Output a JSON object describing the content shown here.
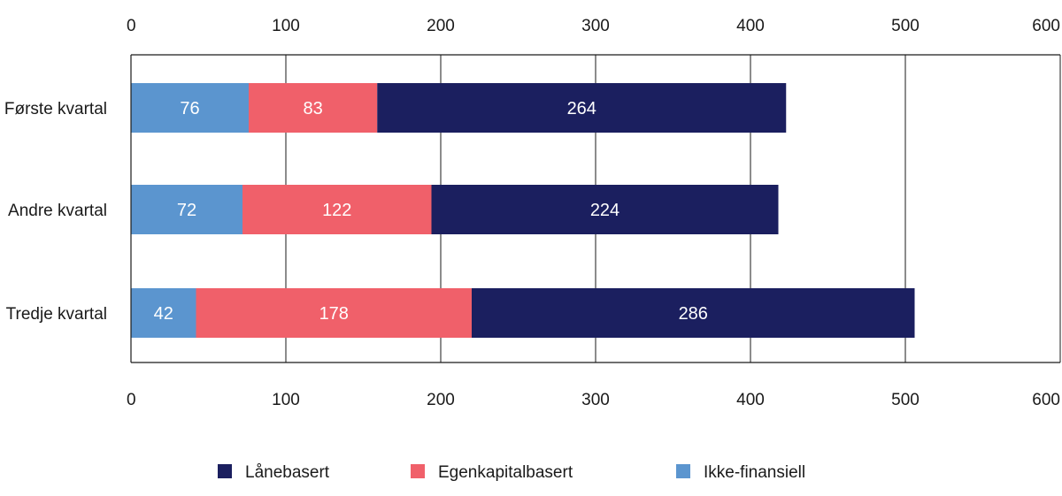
{
  "chart_data": {
    "type": "bar",
    "orientation": "horizontal",
    "stacked": true,
    "categories": [
      "Første kvartal",
      "Andre kvartal",
      "Tredje kvartal"
    ],
    "series": [
      {
        "name": "Ikke-finansiell",
        "color": "#5b95cf",
        "values": [
          76,
          72,
          42
        ]
      },
      {
        "name": "Egenkapitalbasert",
        "color": "#f0606a",
        "values": [
          83,
          122,
          178
        ]
      },
      {
        "name": "Lånebasert",
        "color": "#1b1f5f",
        "values": [
          264,
          224,
          286
        ]
      }
    ],
    "xlim": [
      0,
      600
    ],
    "xticks": [
      0,
      100,
      200,
      300,
      400,
      500,
      600
    ],
    "x_axis_labels_top": true,
    "x_axis_labels_bottom": true,
    "grid": "vertical",
    "legend_position": "bottom",
    "legend_order": [
      "Lånebasert",
      "Egenkapitalbasert",
      "Ikke-finansiell"
    ],
    "colors": {
      "axis": "#1a1a1a",
      "grid": "#1a1a1a",
      "segment_label": "#ffffff"
    }
  }
}
